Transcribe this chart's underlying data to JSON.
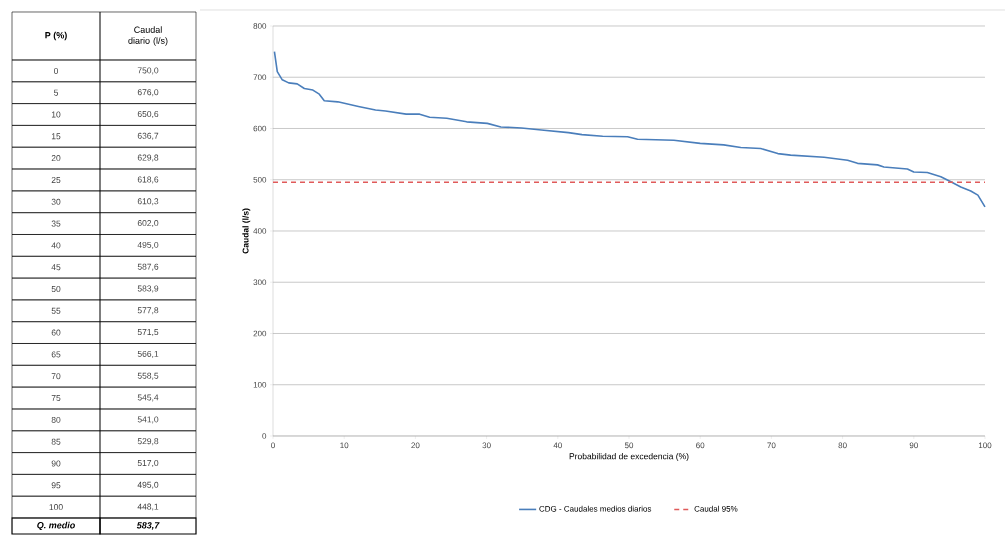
{
  "chart_data": {
    "type": "line",
    "xlabel": "Probabilidad de excedencia (%)",
    "ylabel": "Caudal (l/s)",
    "xlim": [
      0,
      100
    ],
    "xticks": [
      0,
      10,
      20,
      30,
      40,
      50,
      60,
      70,
      80,
      90,
      100
    ],
    "ylim": [
      0,
      800
    ],
    "yticks": [
      0,
      100,
      200,
      300,
      400,
      500,
      600,
      700,
      800
    ],
    "grid": "y",
    "legend": "bottom",
    "series": [
      {
        "name": "CDG - Caudales medios diarios",
        "color": "#4a7ebb",
        "line_style": "solid",
        "x": [
          0.2,
          0.6,
          1.3,
          2.2,
          3.4,
          4.4,
          5.6,
          6.5,
          7.2,
          9.1,
          12,
          14.4,
          15.8,
          18.7,
          20.6,
          22,
          24.4,
          27.2,
          30.1,
          32,
          34.9,
          37.7,
          41.5,
          43.4,
          46.3,
          49.8,
          51.2,
          56.3,
          60,
          63.3,
          65.7,
          68.5,
          70.9,
          72.7,
          77.4,
          80.7,
          82.1,
          84.9,
          85.8,
          89.1,
          90,
          91.9,
          93.8,
          95.2,
          96.6,
          98,
          99,
          100
        ],
        "values": [
          750,
          711,
          695,
          689,
          687,
          678,
          675,
          667,
          654,
          652,
          643,
          636,
          634,
          628,
          628,
          622,
          620,
          613,
          610,
          603,
          601,
          597,
          592,
          588,
          585,
          584,
          579,
          577,
          571,
          568,
          563,
          561,
          551,
          548,
          544,
          538,
          532,
          529,
          525,
          521,
          515,
          514,
          506,
          496,
          486,
          478,
          470,
          447
        ]
      },
      {
        "name": "Caudal 95%",
        "color": "#e05a5a",
        "line_style": "dashed",
        "x": [
          0,
          100
        ],
        "values": [
          495,
          495
        ]
      }
    ],
    "annotations": [
      "P (%)",
      "Caudal diario (l/s)",
      "0",
      "750,0",
      "5",
      "676,0",
      "10",
      "650,6",
      "15",
      "636,7",
      "20",
      "629,8",
      "25",
      "618,6",
      "30",
      "610,3",
      "35",
      "602,0",
      "40",
      "495,0",
      "45",
      "587,6",
      "50",
      "583,9",
      "55",
      "577,8",
      "60",
      "571,5",
      "65",
      "566,1",
      "70",
      "558,5",
      "75",
      "545,4",
      "80",
      "541,0",
      "85",
      "529,8",
      "90",
      "517,0",
      "95",
      "495,0",
      "100",
      "448,1",
      "Q. medio",
      "583,7"
    ]
  }
}
